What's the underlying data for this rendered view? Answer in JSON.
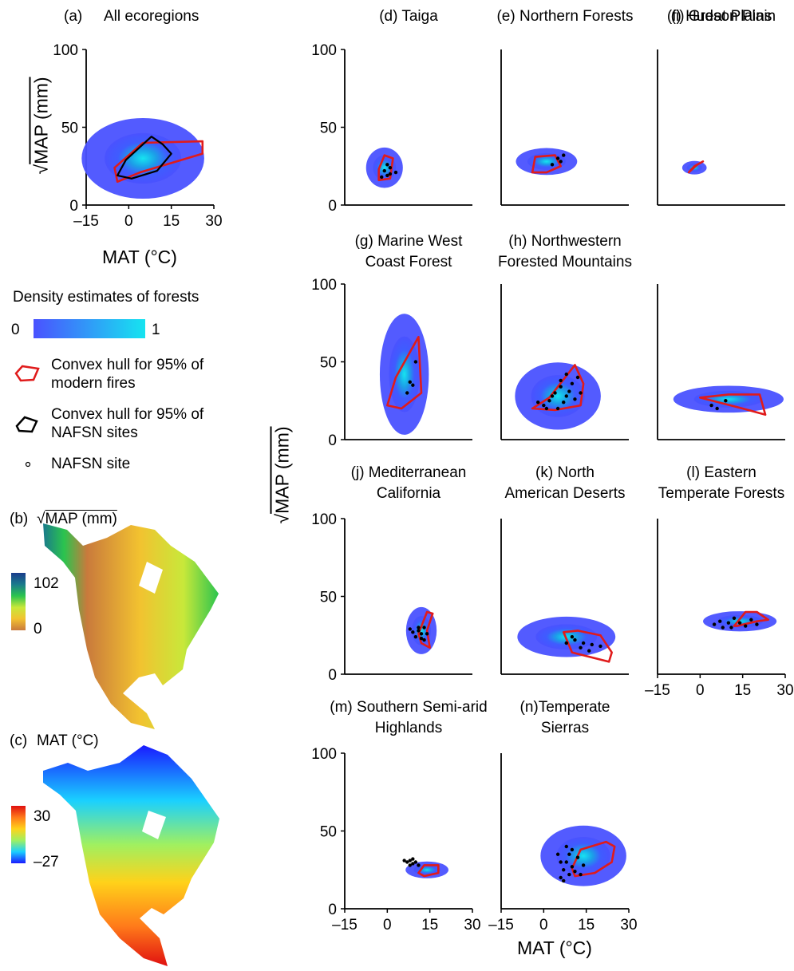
{
  "palette": {
    "density_low": "#4a52ff",
    "density_high": "#16e4f0",
    "fire_hull": "#e01b1b",
    "site_hull": "#000000",
    "map_map_colors": [
      "#c97a3c",
      "#f2c230",
      "#c8e83a",
      "#2bc44e",
      "#1a7a8c",
      "#1a3c8c"
    ],
    "map_mat_colors": [
      "#1a1aff",
      "#1ad0ff",
      "#a0f060",
      "#ffd21a",
      "#ff7a1a",
      "#e01010"
    ]
  },
  "icons": {
    "fire_hull_icon": "red-polygon-icon",
    "site_hull_icon": "black-polygon-icon",
    "site_icon": "circle-dot-icon"
  },
  "legend": {
    "title": "Density estimates of forests",
    "colorbar_min": "0",
    "colorbar_max": "1",
    "fire_hull": "Convex hull for 95% of modern fires",
    "site_hull": "Convex hull for 95% of NAFSN sites",
    "site": "NAFSN site"
  },
  "maps": {
    "b_letter": "(b)",
    "b_label": "MAP (mm)",
    "b_max": "102",
    "b_min": "0",
    "c_letter": "(c)",
    "c_label": "MAT (°C)",
    "c_max": "30",
    "c_min": "–27"
  },
  "axis_labels": {
    "a_x": "MAT (°C)",
    "a_y": "MAP (mm)",
    "grid_x": "MAT (°C)",
    "grid_y": "MAP (mm)"
  },
  "chart_data": [
    {
      "type": "scatter",
      "id": "a",
      "letter": "(a)",
      "title": "All  ecoregions",
      "xlabel": "MAT (°C)",
      "ylabel": "√MAP (mm)",
      "xlim": [
        -15,
        30
      ],
      "ylim": [
        0,
        100
      ],
      "xticks": [
        "–15",
        "0",
        "15",
        "30"
      ],
      "yticks": [
        "0",
        "50",
        "100"
      ],
      "density": {
        "x": 5,
        "y": 30,
        "sx": 10,
        "sy": 12
      },
      "fire_hull": [
        [
          -4,
          15
        ],
        [
          4,
          21
        ],
        [
          26,
          33
        ],
        [
          26,
          41
        ],
        [
          5,
          40
        ],
        [
          -5,
          24
        ]
      ],
      "site_hull": [
        [
          -4,
          19
        ],
        [
          -1,
          29
        ],
        [
          8,
          44
        ],
        [
          12,
          39
        ],
        [
          15,
          33
        ],
        [
          10,
          22
        ],
        [
          1,
          17
        ]
      ],
      "sites": []
    },
    {
      "type": "scatter",
      "id": "d",
      "letter": "(d)",
      "title": "Taiga",
      "xlim": [
        -15,
        30
      ],
      "ylim": [
        0,
        100
      ],
      "xticks": [],
      "yticks": [
        "0",
        "50",
        "100"
      ],
      "density": {
        "x": -1,
        "y": 24,
        "sx": 3,
        "sy": 6
      },
      "fire_hull": [
        [
          -3,
          16
        ],
        [
          1,
          17
        ],
        [
          2,
          30
        ],
        [
          -1,
          32
        ],
        [
          -3,
          23
        ]
      ],
      "site_hull": [],
      "sites": [
        [
          -1,
          22
        ],
        [
          0,
          26
        ],
        [
          1,
          20
        ],
        [
          -2,
          18
        ],
        [
          1,
          24
        ],
        [
          0,
          19
        ],
        [
          3,
          21
        ]
      ]
    },
    {
      "type": "scatter",
      "id": "e",
      "letter": "(e)",
      "title": "Northern Forests",
      "xlim": [
        -15,
        30
      ],
      "ylim": [
        0,
        100
      ],
      "xticks": [],
      "yticks": [],
      "density": {
        "x": 1,
        "y": 28,
        "sx": 5,
        "sy": 4
      },
      "fire_hull": [
        [
          -4,
          21
        ],
        [
          1,
          21
        ],
        [
          6,
          25
        ],
        [
          4,
          32
        ],
        [
          -3,
          31
        ]
      ],
      "site_hull": [],
      "sites": [
        [
          5,
          30
        ],
        [
          7,
          32
        ],
        [
          6,
          28
        ],
        [
          3,
          26
        ]
      ]
    },
    {
      "type": "scatter",
      "id": "f",
      "letter": "(f)",
      "title": "Hudson Plain",
      "xlim": [
        -15,
        30
      ],
      "ylim": [
        0,
        100
      ],
      "xticks": [],
      "yticks": [],
      "density": {
        "x": -2,
        "y": 24,
        "sx": 2,
        "sy": 2
      },
      "fire_hull": [
        [
          -4,
          21
        ],
        [
          -2,
          25
        ],
        [
          1,
          28
        ],
        [
          -1,
          26
        ]
      ],
      "site_hull": [],
      "sites": []
    },
    {
      "type": "scatter",
      "id": "g",
      "letter": "(g) Marine West",
      "title": "Coast Forest",
      "xlim": [
        -15,
        30
      ],
      "ylim": [
        0,
        100
      ],
      "xticks": [],
      "yticks": [
        "0",
        "50",
        "100"
      ],
      "density": {
        "x": 6,
        "y": 42,
        "sx": 4,
        "sy": 18
      },
      "fire_hull": [
        [
          0,
          22
        ],
        [
          5,
          20
        ],
        [
          12,
          30
        ],
        [
          11,
          66
        ],
        [
          3,
          40
        ]
      ],
      "site_hull": [],
      "sites": [
        [
          8,
          37
        ],
        [
          9,
          35
        ],
        [
          10,
          50
        ],
        [
          7,
          30
        ]
      ]
    },
    {
      "type": "scatter",
      "id": "h",
      "letter": "(h) Northwestern",
      "title": "Forested Mountains",
      "xlim": [
        -15,
        30
      ],
      "ylim": [
        0,
        100
      ],
      "xticks": [],
      "yticks": [],
      "density": {
        "x": 5,
        "y": 28,
        "sx": 7,
        "sy": 10
      },
      "fire_hull": [
        [
          -4,
          20
        ],
        [
          2,
          27
        ],
        [
          11,
          48
        ],
        [
          14,
          36
        ],
        [
          13,
          22
        ],
        [
          4,
          19
        ]
      ],
      "site_hull": [],
      "sites": [
        [
          0,
          22
        ],
        [
          2,
          25
        ],
        [
          4,
          30
        ],
        [
          6,
          34
        ],
        [
          8,
          28
        ],
        [
          10,
          36
        ],
        [
          12,
          40
        ],
        [
          5,
          20
        ],
        [
          7,
          24
        ],
        [
          9,
          31
        ],
        [
          11,
          26
        ],
        [
          3,
          28
        ],
        [
          -2,
          24
        ],
        [
          13,
          30
        ],
        [
          1,
          20
        ],
        [
          6,
          38
        ],
        [
          8,
          42
        ]
      ]
    },
    {
      "type": "scatter",
      "id": "i",
      "letter": "(i)",
      "title": "Great Plains",
      "xlim": [
        -15,
        30
      ],
      "ylim": [
        0,
        100
      ],
      "xticks": [],
      "yticks": [],
      "density": {
        "x": 10,
        "y": 26,
        "sx": 9,
        "sy": 4
      },
      "fire_hull": [
        [
          0,
          27
        ],
        [
          15,
          20
        ],
        [
          23,
          16
        ],
        [
          21,
          29
        ],
        [
          10,
          29
        ]
      ],
      "site_hull": [],
      "sites": [
        [
          4,
          22
        ],
        [
          6,
          20
        ],
        [
          9,
          25
        ]
      ]
    },
    {
      "type": "scatter",
      "id": "j",
      "letter": "(j)",
      "title": "Mediterranean California",
      "xlim": [
        -15,
        30
      ],
      "ylim": [
        0,
        100
      ],
      "xticks": [],
      "yticks": [
        "0",
        "50",
        "100"
      ],
      "density": {
        "x": 12,
        "y": 28,
        "sx": 2.5,
        "sy": 7
      },
      "fire_hull": [
        [
          11,
          26
        ],
        [
          14,
          40
        ],
        [
          16,
          39
        ],
        [
          14,
          28
        ],
        [
          15,
          17
        ],
        [
          12,
          20
        ]
      ],
      "site_hull": [],
      "sites": [
        [
          11,
          28
        ],
        [
          12,
          26
        ],
        [
          10,
          24
        ],
        [
          13,
          30
        ],
        [
          9,
          27
        ],
        [
          12,
          23
        ],
        [
          14,
          26
        ],
        [
          11,
          30
        ],
        [
          8,
          29
        ],
        [
          13,
          22
        ]
      ]
    },
    {
      "type": "scatter",
      "id": "k",
      "letter": "(k)",
      "title": "North American Deserts",
      "xlim": [
        -15,
        30
      ],
      "ylim": [
        0,
        100
      ],
      "xticks": [],
      "yticks": [],
      "density": {
        "x": 8,
        "y": 24,
        "sx": 8,
        "sy": 6
      },
      "fire_hull": [
        [
          7,
          27
        ],
        [
          10,
          14
        ],
        [
          23,
          8
        ],
        [
          24,
          14
        ],
        [
          20,
          25
        ],
        [
          12,
          28
        ]
      ],
      "site_hull": [],
      "sites": [
        [
          8,
          20
        ],
        [
          11,
          22
        ],
        [
          14,
          20
        ],
        [
          17,
          19
        ],
        [
          13,
          17
        ],
        [
          10,
          24
        ],
        [
          16,
          15
        ],
        [
          20,
          18
        ]
      ]
    },
    {
      "type": "scatter",
      "id": "l",
      "letter": "(l)",
      "title": "Eastern Temperate Forests",
      "xlim": [
        -15,
        30
      ],
      "ylim": [
        0,
        100
      ],
      "xticks": [
        "–15",
        "0",
        "15",
        "30"
      ],
      "yticks": [],
      "density": {
        "x": 14,
        "y": 34,
        "sx": 6,
        "sy": 3
      },
      "fire_hull": [
        [
          12,
          31
        ],
        [
          16,
          40
        ],
        [
          20,
          40
        ],
        [
          24,
          35
        ],
        [
          20,
          34
        ],
        [
          13,
          31
        ]
      ],
      "site_hull": [],
      "sites": [
        [
          5,
          32
        ],
        [
          8,
          30
        ],
        [
          10,
          33
        ],
        [
          12,
          36
        ],
        [
          14,
          33
        ],
        [
          16,
          31
        ],
        [
          18,
          35
        ],
        [
          20,
          32
        ],
        [
          11,
          30
        ],
        [
          7,
          34
        ]
      ]
    },
    {
      "type": "scatter",
      "id": "m",
      "letter": "(m)",
      "title": "Southern Semi-arid Highlands",
      "xlim": [
        -15,
        30
      ],
      "ylim": [
        0,
        100
      ],
      "xticks": [
        "–15",
        "0",
        "15",
        "30"
      ],
      "yticks": [
        "0",
        "50",
        "100"
      ],
      "density": {
        "x": 14,
        "y": 25,
        "sx": 3.5,
        "sy": 2.5
      },
      "fire_hull": [
        [
          11,
          23
        ],
        [
          13,
          28
        ],
        [
          18,
          28
        ],
        [
          18,
          23
        ],
        [
          13,
          21
        ]
      ],
      "site_hull": [],
      "sites": [
        [
          7,
          30
        ],
        [
          8,
          31
        ],
        [
          9,
          29
        ],
        [
          10,
          30
        ],
        [
          6,
          31
        ],
        [
          9,
          32
        ],
        [
          11,
          28
        ],
        [
          8,
          28
        ]
      ]
    },
    {
      "type": "scatter",
      "id": "n",
      "letter": "(n)",
      "title": "Temperate Sierras",
      "xlabel": "MAT (°C)",
      "xlim": [
        -15,
        30
      ],
      "ylim": [
        0,
        100
      ],
      "xticks": [
        "–15",
        "0",
        "15",
        "30"
      ],
      "yticks": [],
      "density": {
        "x": 14,
        "y": 34,
        "sx": 7,
        "sy": 9
      },
      "fire_hull": [
        [
          10,
          26
        ],
        [
          11,
          21
        ],
        [
          18,
          23
        ],
        [
          24,
          30
        ],
        [
          25,
          40
        ],
        [
          22,
          43
        ],
        [
          13,
          38
        ]
      ],
      "site_hull": [],
      "sites": [
        [
          6,
          20
        ],
        [
          7,
          25
        ],
        [
          8,
          30
        ],
        [
          9,
          22
        ],
        [
          10,
          27
        ],
        [
          6,
          30
        ],
        [
          8,
          40
        ],
        [
          9,
          35
        ],
        [
          11,
          24
        ],
        [
          12,
          33
        ],
        [
          14,
          28
        ],
        [
          7,
          18
        ],
        [
          5,
          35
        ],
        [
          10,
          38
        ],
        [
          13,
          22
        ]
      ]
    }
  ]
}
